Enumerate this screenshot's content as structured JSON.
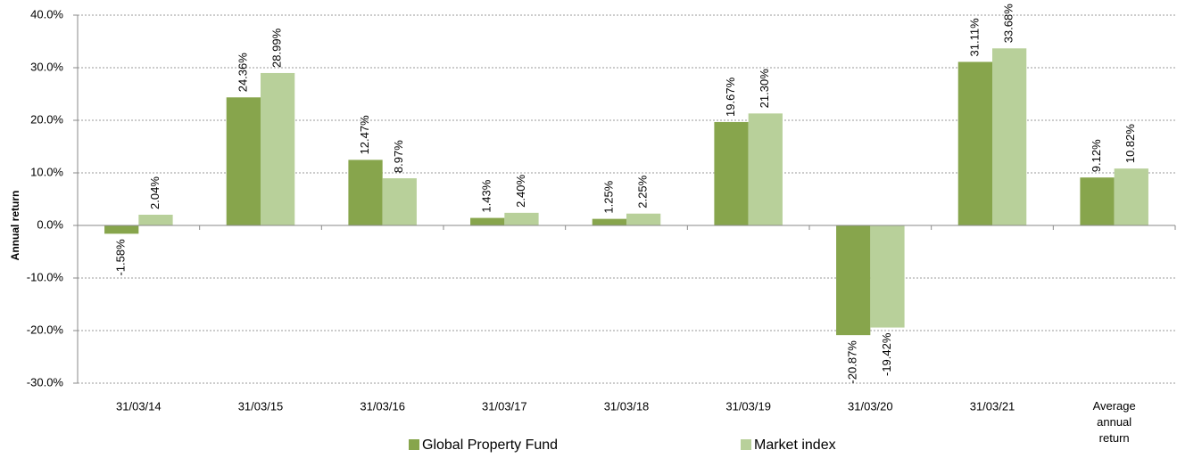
{
  "chart_data": {
    "type": "bar",
    "y_label": "Annual return",
    "categories": [
      "31/03/14",
      "31/03/15",
      "31/03/16",
      "31/03/17",
      "31/03/18",
      "31/03/19",
      "31/03/20",
      "31/03/21",
      "Average annual return"
    ],
    "series": [
      {
        "name": "Global Property Fund",
        "color": "#87a54c",
        "values": [
          -1.58,
          24.36,
          12.47,
          1.43,
          1.25,
          19.67,
          -20.87,
          31.11,
          9.12
        ],
        "value_labels": [
          "-1.58%",
          "24.36%",
          "12.47%",
          "1.43%",
          "1.25%",
          "19.67%",
          "-20.87%",
          "31.11%",
          "9.12%"
        ]
      },
      {
        "name": "Market index",
        "color": "#b8d09a",
        "values": [
          2.04,
          28.99,
          8.97,
          2.4,
          2.25,
          21.3,
          -19.42,
          33.68,
          10.82
        ],
        "value_labels": [
          "2.04%",
          "28.99%",
          "8.97%",
          "2.40%",
          "2.25%",
          "21.30%",
          "-19.42%",
          "33.68%",
          "10.82%"
        ]
      }
    ],
    "ylim": [
      -30,
      40
    ],
    "yticks": [
      {
        "value": -30,
        "label": "-30.0%"
      },
      {
        "value": -20,
        "label": "-20.0%"
      },
      {
        "value": -10,
        "label": "-10.0%"
      },
      {
        "value": 0,
        "label": "0.0%"
      },
      {
        "value": 10,
        "label": "10.0%"
      },
      {
        "value": 20,
        "label": "20.0%"
      },
      {
        "value": 30,
        "label": "30.0%"
      },
      {
        "value": 40,
        "label": "40.0%"
      }
    ],
    "grid": true,
    "legend": "bottom"
  }
}
